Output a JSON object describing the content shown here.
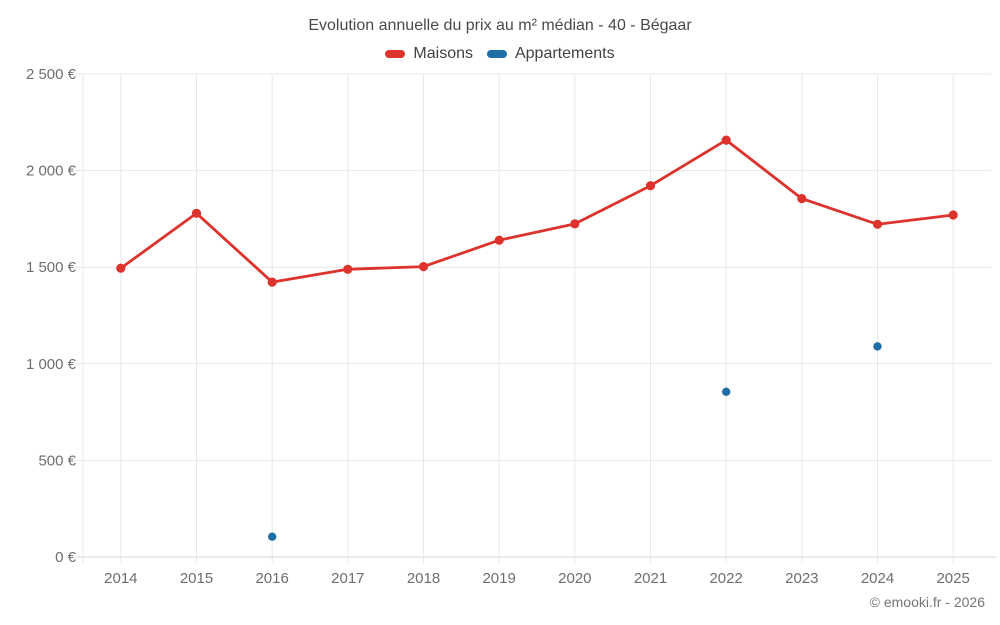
{
  "header": {
    "title": "Evolution annuelle du prix au m² médian - 40 - Bégaar"
  },
  "legend": {
    "items": [
      {
        "label": "Maisons",
        "color": "#dd332d"
      },
      {
        "label": "Appartements",
        "color": "#1d6fa5"
      }
    ]
  },
  "footer": {
    "copyright": "© emooki.fr - 2026"
  },
  "colors": {
    "grid": "#e7e7e7",
    "axis": "#d4d4d4",
    "tick_label": "#6e6e6e",
    "title_text": "#4a4a4a",
    "legend_text": "#424242",
    "copyright_text": "#757575",
    "maisons": "#dd332d",
    "appartements": "#1d6fa5"
  },
  "chart_data": {
    "type": "line",
    "title": "Evolution annuelle du prix au m² médian - 40 - Bégaar",
    "categories": [
      "2014",
      "2015",
      "2016",
      "2017",
      "2018",
      "2019",
      "2020",
      "2021",
      "2022",
      "2023",
      "2024",
      "2025"
    ],
    "series": [
      {
        "name": "Maisons",
        "type": "line",
        "color": "#dd332d",
        "values": [
          1495,
          1779,
          1423,
          1489,
          1503,
          1640,
          1724,
          1922,
          2158,
          1855,
          1722,
          1770
        ]
      },
      {
        "name": "Appartements",
        "type": "scatter",
        "color": "#1d6fa5",
        "values": [
          null,
          null,
          105,
          null,
          null,
          null,
          null,
          null,
          855,
          null,
          1090,
          null
        ]
      }
    ],
    "xlabel": "",
    "ylabel": "",
    "ylim": [
      0,
      2500
    ],
    "yticks": [
      0,
      500,
      1000,
      1500,
      2000,
      2500
    ],
    "yticklabels": [
      "0 €",
      "500 €",
      "1 000 €",
      "1 500 €",
      "2 000 €",
      "2 500 €"
    ],
    "grid": true,
    "legend_position": "top"
  }
}
